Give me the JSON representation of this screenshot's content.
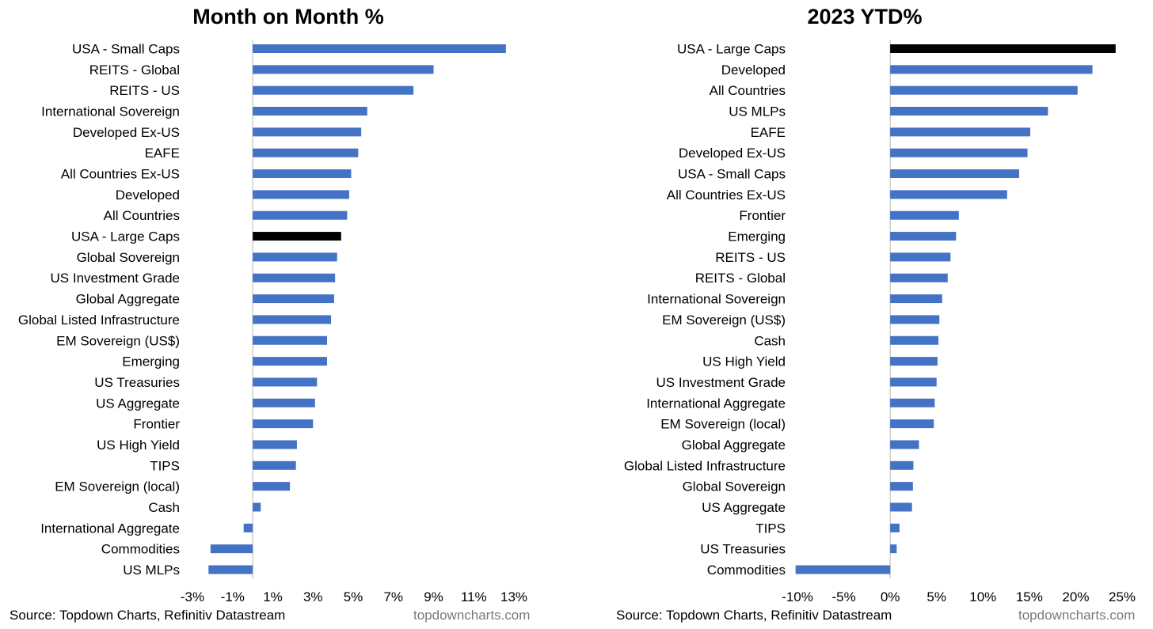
{
  "colors": {
    "bar": "#4472c4",
    "highlight": "#000000",
    "axis": "#d0d0d0"
  },
  "chart_data": [
    {
      "type": "bar",
      "orientation": "horizontal",
      "title": "Month on Month %",
      "highlight": "USA - Large Caps",
      "xlim": [
        -3,
        13
      ],
      "xticks": [
        -3,
        -1,
        1,
        3,
        5,
        7,
        9,
        11,
        13
      ],
      "tick_labels": [
        "-3%",
        "-1%",
        "1%",
        "3%",
        "5%",
        "7%",
        "9%",
        "11%",
        "13%"
      ],
      "categories": [
        "USA - Small Caps",
        "REITS - Global",
        "REITS - US",
        "International Sovereign",
        "Developed Ex-US",
        "EAFE",
        "All Countries Ex-US",
        "Developed",
        "All Countries",
        "USA - Large Caps",
        "Global Sovereign",
        "US Investment Grade",
        "Global Aggregate",
        "Global Listed Infrastructure",
        "EM Sovereign (US$)",
        "Emerging",
        "US Treasuries",
        "US Aggregate",
        "Frontier",
        "US High Yield",
        "TIPS",
        "EM Sovereign (local)",
        "Cash",
        "International Aggregate",
        "Commodities",
        "US MLPs"
      ],
      "values": [
        12.6,
        9.0,
        8.0,
        5.7,
        5.4,
        5.25,
        4.9,
        4.8,
        4.7,
        4.4,
        4.2,
        4.1,
        4.05,
        3.9,
        3.7,
        3.7,
        3.2,
        3.1,
        3.0,
        2.2,
        2.15,
        1.85,
        0.4,
        -0.45,
        -2.1,
        -2.2
      ],
      "source": "Source: Topdown Charts, Refinitiv Datastream",
      "site": "topdowncharts.com"
    },
    {
      "type": "bar",
      "orientation": "horizontal",
      "title": "2023 YTD%",
      "highlight": "USA - Large Caps",
      "xlim": [
        -10,
        25
      ],
      "xticks": [
        -10,
        -5,
        0,
        5,
        10,
        15,
        20,
        25
      ],
      "tick_labels": [
        "-10%",
        "-5%",
        "0%",
        "5%",
        "10%",
        "15%",
        "20%",
        "25%"
      ],
      "categories": [
        "USA - Large Caps",
        "Developed",
        "All Countries",
        "US MLPs",
        "EAFE",
        "Developed Ex-US",
        "USA - Small Caps",
        "All Countries Ex-US",
        "Frontier",
        "Emerging",
        "REITS - US",
        "REITS - Global",
        "International Sovereign",
        "EM Sovereign (US$)",
        "Cash",
        "US High Yield",
        "US Investment Grade",
        "International Aggregate",
        "EM Sovereign (local)",
        "Global Aggregate",
        "Global Listed Infrastructure",
        "Global Sovereign",
        "US Aggregate",
        "TIPS",
        "US Treasuries",
        "Commodities"
      ],
      "values": [
        24.3,
        21.8,
        20.2,
        17.0,
        15.1,
        14.8,
        13.9,
        12.6,
        7.4,
        7.1,
        6.5,
        6.2,
        5.6,
        5.3,
        5.2,
        5.1,
        5.0,
        4.8,
        4.7,
        3.1,
        2.5,
        2.45,
        2.35,
        1.0,
        0.7,
        -10.2
      ],
      "source": "Source: Topdown Charts, Refinitiv Datastream",
      "site": "topdowncharts.com"
    }
  ]
}
